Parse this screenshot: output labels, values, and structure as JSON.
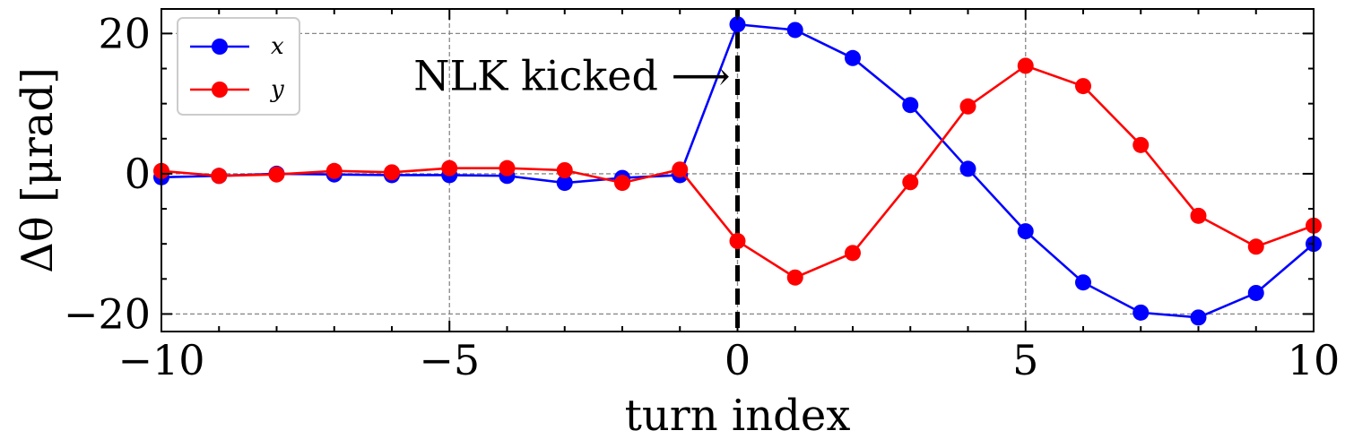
{
  "chart_data": {
    "type": "line",
    "xlabel": "turn index",
    "ylabel": "Δθ [μrad]",
    "xlim": [
      -10,
      10
    ],
    "ylim": [
      -22.5,
      23.5
    ],
    "xticks": [
      -10,
      -5,
      0,
      5,
      10
    ],
    "yticks": [
      -20,
      0,
      20
    ],
    "x_tick_labels": [
      "−10",
      "−5",
      "0",
      "5",
      "10"
    ],
    "y_tick_labels": [
      "−20",
      "0",
      "20"
    ],
    "grid": true,
    "legend_position": "top-left",
    "x": [
      -10,
      -9,
      -8,
      -7,
      -6,
      -5,
      -4,
      -3,
      -2,
      -1,
      0,
      1,
      2,
      3,
      4,
      5,
      6,
      7,
      8,
      9,
      10
    ],
    "series": [
      {
        "name": "x",
        "color": "#0000ff",
        "values": [
          -0.5,
          -0.3,
          0.0,
          -0.1,
          -0.2,
          -0.2,
          -0.3,
          -1.3,
          -0.6,
          -0.2,
          21.3,
          20.5,
          16.5,
          9.8,
          0.7,
          -8.2,
          -15.5,
          -19.8,
          -20.5,
          -17.0,
          -10.0
        ]
      },
      {
        "name": "y",
        "color": "#ff0000",
        "values": [
          0.4,
          -0.3,
          -0.1,
          0.4,
          0.2,
          0.8,
          0.8,
          0.5,
          -1.3,
          0.6,
          -9.6,
          -14.8,
          -11.3,
          -1.2,
          9.6,
          15.4,
          12.5,
          4.1,
          -6.0,
          -10.4,
          -7.4
        ]
      }
    ],
    "annotations": [
      {
        "text": "NLK kicked ⟶",
        "x": 0,
        "note_type": "vertical-dashed-line"
      }
    ]
  }
}
